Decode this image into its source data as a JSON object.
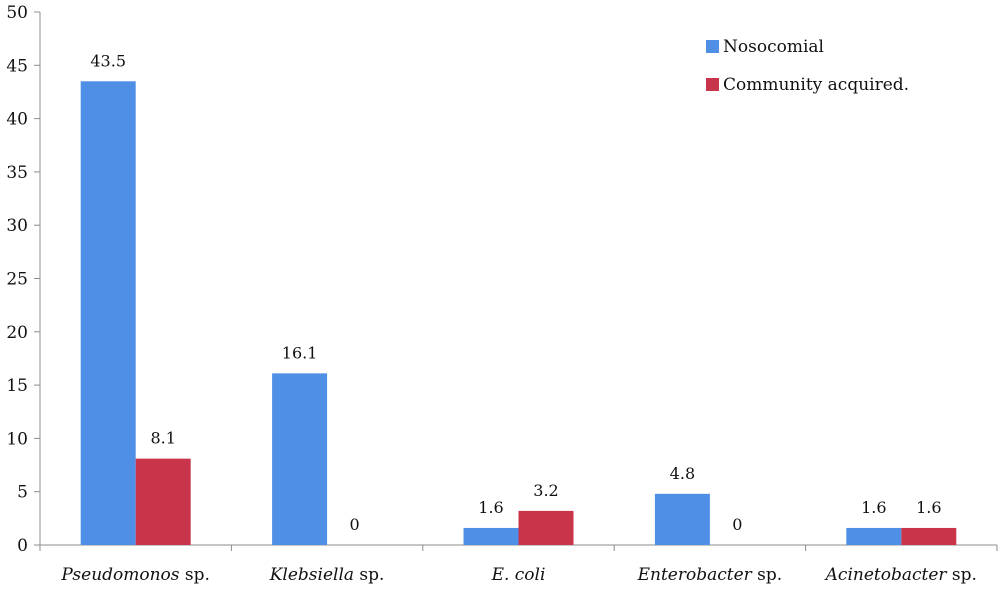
{
  "chart_data": {
    "type": "bar",
    "categories": [
      {
        "italic": "Pseudomonos",
        "suffix": " sp."
      },
      {
        "italic": "Klebsiella",
        "suffix": " sp."
      },
      {
        "italic": "E. coli",
        "suffix": ""
      },
      {
        "italic": "Enterobacter",
        "suffix": " sp."
      },
      {
        "italic": "Acinetobacter",
        "suffix": " sp."
      }
    ],
    "series": [
      {
        "name": "Nosocomial",
        "color": "#4F8FE6",
        "values": [
          43.5,
          16.1,
          1.6,
          4.8,
          1.6
        ]
      },
      {
        "name": "Community acquired.",
        "color": "#C8354A",
        "values": [
          8.1,
          0,
          3.2,
          0,
          1.6
        ]
      }
    ],
    "data_labels": [
      [
        "43.5",
        "16.1",
        "1.6",
        "4.8",
        "1.6"
      ],
      [
        "8.1",
        "0",
        "3.2",
        "0",
        "1.6"
      ]
    ],
    "ylim": [
      0,
      50
    ],
    "yticks": [
      0,
      5,
      10,
      15,
      20,
      25,
      30,
      35,
      40,
      45,
      50
    ],
    "title": "",
    "xlabel": "",
    "ylabel": "",
    "grid": false,
    "legend_position": "top-right"
  }
}
